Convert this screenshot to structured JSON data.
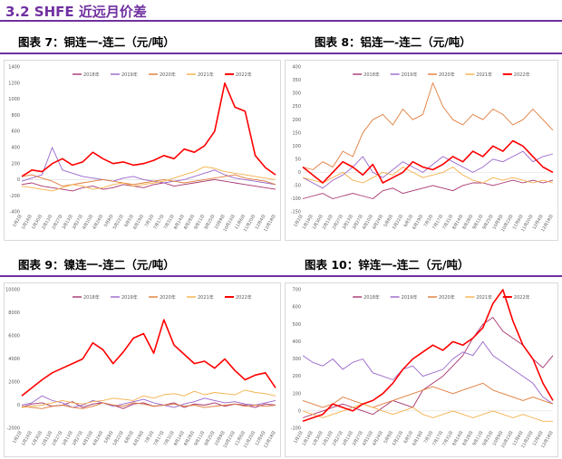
{
  "section_title": "3.2 SHFE 近远月价差",
  "captions": [
    "图表 7：铜连一-连二（元/吨）",
    "图表 8：铝连一-连二（元/吨）",
    "图表 9：镍连一-连二（元/吨）",
    "图表 10：锌连一-连二（元/吨）"
  ],
  "colors": {
    "accent": "#7030A0",
    "s2018": "#A8336E",
    "s2019": "#9966CC",
    "s2020": "#E07B39",
    "s2021": "#F4B04A",
    "s2022": "#FF0000"
  },
  "chart_data": [
    {
      "type": "line",
      "ylim": [
        -400,
        1400
      ],
      "yticks": [
        -400,
        -200,
        0,
        200,
        400,
        600,
        800,
        1000,
        1200,
        1400
      ],
      "xticks": [
        "1月2日",
        "1月16日",
        "1月30日",
        "2月13日",
        "2月27日",
        "3月13日",
        "3月27日",
        "4月10日",
        "4月24日",
        "5月8日",
        "5月22日",
        "6月5日",
        "6月19日",
        "7月3日",
        "7月17日",
        "7月31日",
        "8月14日",
        "8月28日",
        "9月11日",
        "9月25日",
        "10月9日",
        "10月23日",
        "11月6日",
        "11月20日",
        "12月4日",
        "12月18日"
      ],
      "series": [
        {
          "name": "2018年",
          "values": [
            -60,
            -40,
            -80,
            -100,
            -120,
            -140,
            -100,
            -80,
            -120,
            -100,
            -60,
            -80,
            -100,
            -60,
            -40,
            -80,
            -60,
            -40,
            -20,
            0,
            -20,
            -40,
            -60,
            -80,
            -100,
            -120
          ]
        },
        {
          "name": "2019年",
          "values": [
            -20,
            20,
            60,
            400,
            120,
            80,
            40,
            20,
            0,
            -20,
            20,
            40,
            0,
            -20,
            -40,
            -20,
            0,
            40,
            80,
            120,
            60,
            20,
            0,
            -20,
            -40,
            -60
          ]
        },
        {
          "name": "2020年",
          "values": [
            40,
            60,
            20,
            -20,
            -80,
            -60,
            -40,
            -20,
            0,
            -20,
            -40,
            -60,
            -40,
            -20,
            0,
            -20,
            -40,
            -20,
            0,
            20,
            40,
            60,
            20,
            0,
            -20,
            -60
          ]
        },
        {
          "name": "2021年",
          "values": [
            -80,
            -100,
            -120,
            -140,
            -100,
            -60,
            -80,
            -120,
            -100,
            -60,
            -40,
            -80,
            -60,
            -40,
            -20,
            20,
            60,
            100,
            160,
            140,
            100,
            80,
            60,
            40,
            20,
            0
          ]
        },
        {
          "name": "2022年",
          "values": [
            40,
            120,
            100,
            200,
            260,
            180,
            220,
            340,
            260,
            200,
            220,
            180,
            200,
            240,
            300,
            260,
            380,
            340,
            420,
            600,
            1200,
            900,
            850,
            300,
            150,
            60
          ]
        }
      ]
    },
    {
      "type": "line",
      "ylim": [
        -150,
        400
      ],
      "yticks": [
        -150,
        -100,
        -50,
        0,
        50,
        100,
        150,
        200,
        250,
        300,
        350,
        400
      ],
      "xticks": [
        "1月2日",
        "1月16日",
        "1月30日",
        "2月13日",
        "2月27日",
        "3月13日",
        "3月27日",
        "4月10日",
        "4月24日",
        "5月8日",
        "5月22日",
        "6月5日",
        "6月19日",
        "7月3日",
        "7月17日",
        "7月31日",
        "8月14日",
        "8月28日",
        "9月11日",
        "9月25日",
        "10月9日",
        "10月23日",
        "11月6日",
        "11月20日",
        "12月4日",
        "12月18日"
      ],
      "series": [
        {
          "name": "2018年",
          "values": [
            -100,
            -90,
            -80,
            -100,
            -90,
            -80,
            -90,
            -100,
            -70,
            -60,
            -80,
            -70,
            -60,
            -50,
            -60,
            -70,
            -50,
            -40,
            -40,
            -50,
            -40,
            -30,
            -40,
            -30,
            -40,
            -30
          ]
        },
        {
          "name": "2019年",
          "values": [
            -20,
            -40,
            -60,
            -30,
            -10,
            20,
            60,
            0,
            -20,
            10,
            40,
            20,
            0,
            30,
            60,
            40,
            20,
            0,
            20,
            50,
            40,
            60,
            80,
            40,
            60,
            70
          ]
        },
        {
          "name": "2020年",
          "values": [
            20,
            10,
            40,
            20,
            80,
            60,
            150,
            200,
            220,
            180,
            240,
            200,
            220,
            340,
            250,
            200,
            180,
            220,
            200,
            240,
            220,
            180,
            200,
            240,
            200,
            160
          ]
        },
        {
          "name": "2021年",
          "values": [
            -20,
            -30,
            -40,
            -20,
            0,
            -30,
            -40,
            -20,
            0,
            -10,
            20,
            0,
            -20,
            -10,
            0,
            20,
            -10,
            -30,
            -40,
            -20,
            -30,
            -20,
            -30,
            -40,
            -30,
            -40
          ]
        },
        {
          "name": "2022年",
          "values": [
            20,
            -10,
            -40,
            0,
            40,
            20,
            -10,
            30,
            -40,
            -20,
            0,
            40,
            20,
            10,
            30,
            60,
            40,
            80,
            60,
            100,
            80,
            120,
            100,
            60,
            20,
            0
          ]
        }
      ]
    },
    {
      "type": "line",
      "ylim": [
        -2000,
        10000
      ],
      "yticks": [
        -2000,
        0,
        2000,
        4000,
        6000,
        8000,
        10000
      ],
      "xticks": [
        "1月2日",
        "1月16日",
        "1月30日",
        "2月13日",
        "2月27日",
        "3月13日",
        "3月27日",
        "4月10日",
        "4月24日",
        "5月8日",
        "5月22日",
        "6月5日",
        "6月19日",
        "7月3日",
        "7月17日",
        "7月31日",
        "8月14日",
        "8月28日",
        "9月11日",
        "9月25日",
        "10月9日",
        "10月23日",
        "11月6日",
        "11月20日",
        "12月4日",
        "12月18日"
      ],
      "series": [
        {
          "name": "2018年",
          "values": [
            -200,
            100,
            200,
            -100,
            0,
            300,
            -200,
            100,
            200,
            0,
            -300,
            100,
            200,
            -100,
            0,
            200,
            -200,
            100,
            0,
            200,
            -100,
            100,
            0,
            -200,
            100,
            0
          ]
        },
        {
          "name": "2019年",
          "values": [
            0,
            200,
            800,
            400,
            200,
            -200,
            0,
            400,
            200,
            -100,
            100,
            300,
            500,
            200,
            0,
            -200,
            100,
            300,
            600,
            400,
            200,
            300,
            100,
            0,
            200,
            400
          ]
        },
        {
          "name": "2020年",
          "values": [
            -100,
            -200,
            -300,
            -100,
            0,
            -200,
            -300,
            -100,
            200,
            0,
            -100,
            200,
            100,
            -100,
            0,
            100,
            -100,
            0,
            -200,
            -100,
            0,
            100,
            -100,
            0,
            -100,
            0
          ]
        },
        {
          "name": "2021年",
          "values": [
            -200,
            -100,
            0,
            200,
            400,
            200,
            100,
            300,
            400,
            600,
            500,
            400,
            800,
            600,
            900,
            1000,
            800,
            1200,
            900,
            1100,
            1000,
            900,
            1300,
            1100,
            1000,
            800
          ]
        },
        {
          "name": "2022年",
          "values": [
            800,
            1500,
            2200,
            2800,
            3200,
            3600,
            4000,
            5400,
            4800,
            3600,
            4600,
            5800,
            6200,
            4500,
            7400,
            5200,
            4400,
            3600,
            3800,
            3200,
            4000,
            3000,
            2200,
            2600,
            2800,
            1500
          ]
        }
      ]
    },
    {
      "type": "line",
      "ylim": [
        -100,
        700
      ],
      "yticks": [
        -100,
        0,
        100,
        200,
        300,
        400,
        500,
        600,
        700
      ],
      "xticks": [
        "1月2日",
        "1月16日",
        "1月30日",
        "2月13日",
        "2月27日",
        "3月13日",
        "3月27日",
        "4月10日",
        "4月24日",
        "5月8日",
        "5月22日",
        "6月5日",
        "6月19日",
        "7月3日",
        "7月17日",
        "7月31日",
        "8月14日",
        "8月28日",
        "9月11日",
        "9月25日",
        "10月9日",
        "10月23日",
        "11月6日",
        "11月20日",
        "12月4日",
        "12月18日"
      ],
      "series": [
        {
          "name": "2018年",
          "values": [
            -40,
            -20,
            0,
            20,
            40,
            20,
            0,
            -20,
            20,
            60,
            40,
            20,
            120,
            160,
            200,
            260,
            320,
            420,
            500,
            540,
            460,
            420,
            380,
            300,
            250,
            320
          ]
        },
        {
          "name": "2019年",
          "values": [
            320,
            280,
            260,
            300,
            240,
            280,
            300,
            220,
            200,
            180,
            240,
            260,
            200,
            220,
            240,
            300,
            340,
            320,
            400,
            320,
            280,
            240,
            200,
            160,
            80,
            40
          ]
        },
        {
          "name": "2020年",
          "values": [
            60,
            40,
            20,
            40,
            80,
            60,
            40,
            20,
            40,
            60,
            80,
            100,
            120,
            140,
            120,
            100,
            120,
            140,
            160,
            120,
            100,
            80,
            60,
            80,
            60,
            40
          ]
        },
        {
          "name": "2021年",
          "values": [
            0,
            -20,
            -40,
            -20,
            0,
            20,
            40,
            20,
            0,
            -20,
            0,
            20,
            -20,
            -40,
            -20,
            0,
            -20,
            -40,
            -20,
            0,
            -20,
            -40,
            -20,
            -40,
            -60,
            -60
          ]
        },
        {
          "name": "2022年",
          "values": [
            -60,
            -40,
            -20,
            40,
            20,
            0,
            40,
            60,
            100,
            160,
            240,
            300,
            340,
            380,
            350,
            400,
            380,
            420,
            480,
            620,
            700,
            520,
            380,
            300,
            160,
            60
          ]
        }
      ]
    }
  ]
}
